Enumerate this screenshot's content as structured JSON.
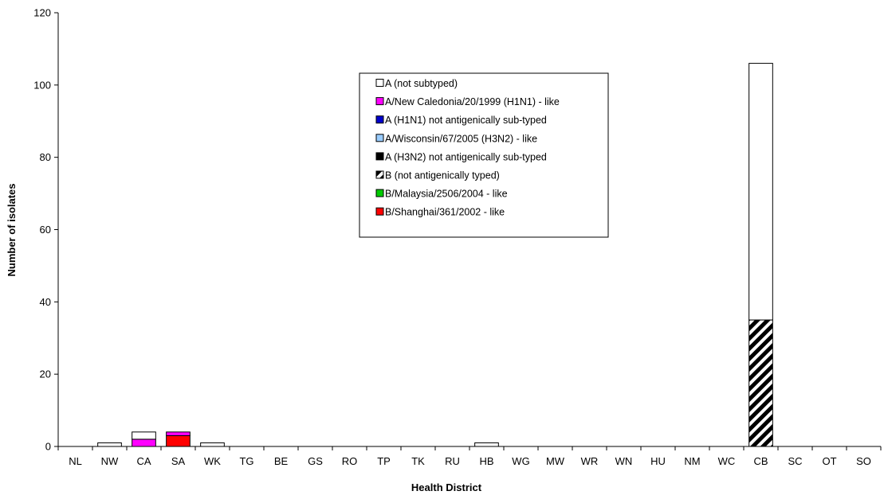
{
  "chart_data": {
    "type": "bar",
    "stacked": true,
    "title": "",
    "xlabel": "Health District",
    "ylabel": "Number of isolates",
    "ylim": [
      0,
      120
    ],
    "yticks": [
      0,
      20,
      40,
      60,
      80,
      100,
      120
    ],
    "grid": false,
    "legend_position": "top-center",
    "categories": [
      "NL",
      "NW",
      "CA",
      "SA",
      "WK",
      "TG",
      "BE",
      "GS",
      "RO",
      "TP",
      "TK",
      "RU",
      "HB",
      "WG",
      "MW",
      "WR",
      "WN",
      "HU",
      "NM",
      "WC",
      "CB",
      "SC",
      "OT",
      "SO"
    ],
    "series": [
      {
        "name": "A (not subtyped)",
        "pattern": "solid",
        "color": "#ffffff",
        "values": [
          0,
          1,
          2,
          0,
          1,
          0,
          0,
          0,
          0,
          0,
          0,
          0,
          1,
          0,
          0,
          0,
          0,
          0,
          0,
          0,
          71,
          0,
          0,
          0
        ]
      },
      {
        "name": "A/New Caledonia/20/1999 (H1N1) - like",
        "pattern": "solid",
        "color": "#ff00ff",
        "values": [
          0,
          0,
          2,
          1,
          0,
          0,
          0,
          0,
          0,
          0,
          0,
          0,
          0,
          0,
          0,
          0,
          0,
          0,
          0,
          0,
          0,
          0,
          0,
          0
        ]
      },
      {
        "name": "A (H1N1) not antigenically sub-typed",
        "pattern": "solid",
        "color": "#0000cc",
        "values": [
          0,
          0,
          0,
          0,
          0,
          0,
          0,
          0,
          0,
          0,
          0,
          0,
          0,
          0,
          0,
          0,
          0,
          0,
          0,
          0,
          0,
          0,
          0,
          0
        ]
      },
      {
        "name": "A/Wisconsin/67/2005 (H3N2) - like",
        "pattern": "solid",
        "color": "#99ccff",
        "values": [
          0,
          0,
          0,
          0,
          0,
          0,
          0,
          0,
          0,
          0,
          0,
          0,
          0,
          0,
          0,
          0,
          0,
          0,
          0,
          0,
          0,
          0,
          0,
          0
        ]
      },
      {
        "name": "A (H3N2) not antigenically sub-typed",
        "pattern": "solid",
        "color": "#000000",
        "values": [
          0,
          0,
          0,
          0,
          0,
          0,
          0,
          0,
          0,
          0,
          0,
          0,
          0,
          0,
          0,
          0,
          0,
          0,
          0,
          0,
          0,
          0,
          0,
          0
        ]
      },
      {
        "name": "B (not antigenically typed)",
        "pattern": "hatch",
        "color": "#000000",
        "values": [
          0,
          0,
          0,
          0,
          0,
          0,
          0,
          0,
          0,
          0,
          0,
          0,
          0,
          0,
          0,
          0,
          0,
          0,
          0,
          0,
          35,
          0,
          0,
          0
        ]
      },
      {
        "name": "B/Malaysia/2506/2004 - like",
        "pattern": "solid",
        "color": "#00cc00",
        "values": [
          0,
          0,
          0,
          0,
          0,
          0,
          0,
          0,
          0,
          0,
          0,
          0,
          0,
          0,
          0,
          0,
          0,
          0,
          0,
          0,
          0,
          0,
          0,
          0
        ]
      },
      {
        "name": "B/Shanghai/361/2002 - like",
        "pattern": "solid",
        "color": "#ff0000",
        "values": [
          0,
          0,
          0,
          3,
          0,
          0,
          0,
          0,
          0,
          0,
          0,
          0,
          0,
          0,
          0,
          0,
          0,
          0,
          0,
          0,
          0,
          0,
          0,
          0
        ]
      }
    ],
    "stack_order": [
      7,
      6,
      5,
      4,
      3,
      2,
      1,
      0
    ]
  }
}
